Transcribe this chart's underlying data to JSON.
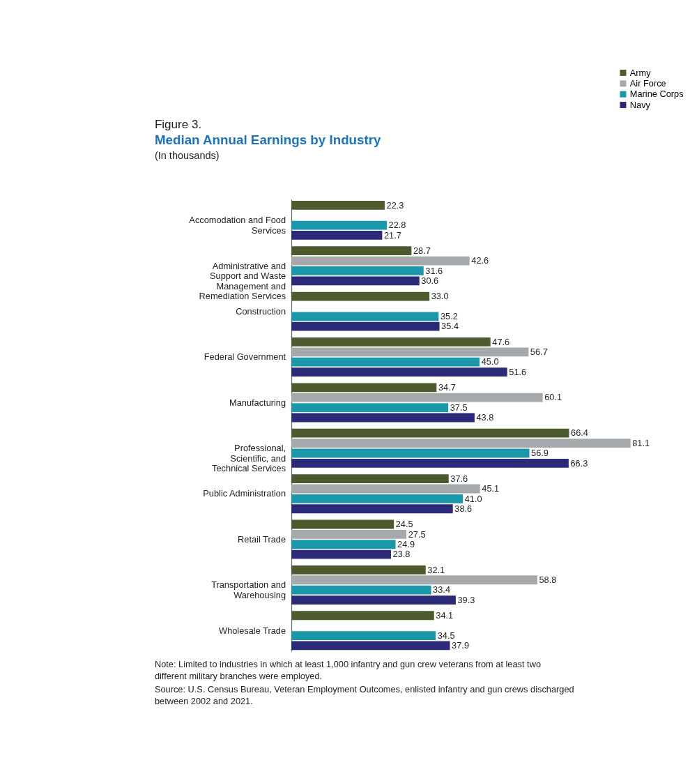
{
  "chart_data": {
    "type": "bar",
    "orientation": "horizontal",
    "title": "Median Annual Earnings by Industry",
    "subtitle": "(In thousands)",
    "categories": [
      "Accomodation and Food Services",
      "Administrative and Support and Waste Management and Remediation Services",
      "Construction",
      "Federal Government",
      "Manufacturing",
      "Professional, Scientific, and Technical Services",
      "Public Administration",
      "Retail Trade",
      "Transportation and Warehousing",
      "Wholesale Trade"
    ],
    "series": [
      {
        "name": "Army",
        "color": "#4d5a2e",
        "values": [
          22.3,
          28.7,
          33.0,
          47.6,
          34.7,
          66.4,
          37.6,
          24.5,
          32.1,
          34.1
        ],
        "value_labels": [
          "22.3",
          "28.7",
          "33.0",
          "47.6",
          "34.7",
          "66.4",
          "37.6",
          "24.5",
          "32.1",
          "34.1"
        ]
      },
      {
        "name": "Air Force",
        "color": "#a6a9ab",
        "values": [
          null,
          42.6,
          null,
          56.7,
          60.1,
          81.1,
          45.1,
          27.5,
          58.8,
          null
        ],
        "value_labels": [
          null,
          "42.6",
          null,
          "56.7",
          "60.1",
          "81.1",
          "45.1",
          "27.5",
          "58.8",
          null
        ]
      },
      {
        "name": "Marine Corps",
        "color": "#1a97a8",
        "values": [
          22.8,
          31.6,
          35.2,
          45.0,
          37.5,
          56.9,
          41.0,
          24.9,
          33.4,
          34.5
        ],
        "value_labels": [
          "22.8",
          "31.6",
          "35.2",
          "45.0",
          "37.5",
          "56.9",
          "41.0",
          "24.9",
          "33.4",
          "34.5"
        ]
      },
      {
        "name": "Navy",
        "color": "#2b2a78",
        "values": [
          21.7,
          30.6,
          35.4,
          51.6,
          43.8,
          66.3,
          38.6,
          23.8,
          39.3,
          37.9
        ],
        "value_labels": [
          "21.7",
          "30.6",
          "35.4",
          "51.6",
          "43.8",
          "66.3",
          "38.6",
          "23.8",
          "39.3",
          "37.9"
        ]
      }
    ],
    "legend": "top right",
    "grid": false,
    "annotations": [
      "Figure 3.",
      "Note: Limited to industries in which at least 1,000 infantry and gun crew veterans from at least two different military branches were employed.",
      "Source: U.S. Census Bureau, Veteran Employment Outcomes, enlisted infantry and gun crews discharged between 2002 and 2021."
    ]
  }
}
